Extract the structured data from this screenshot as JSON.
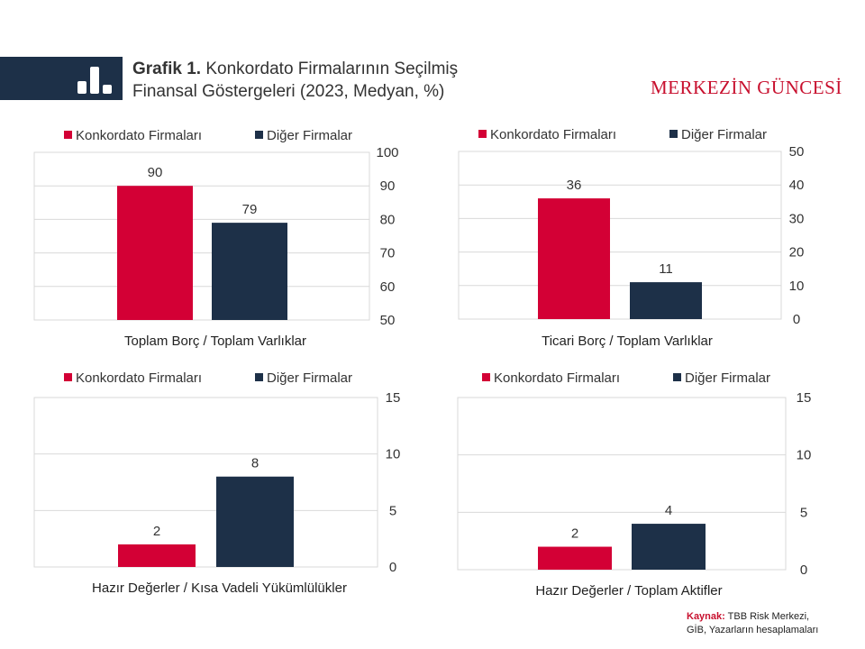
{
  "header": {
    "title_bold": "Grafik 1.",
    "title_line1": "Konkordato Firmalarının Seçilmiş",
    "title_line2": "Finansal Göstergeleri (2023, Medyan, %)",
    "brand": "MERKEZİN GÜNCESİ"
  },
  "colors": {
    "konkordato": "#d30035",
    "diger": "#1d3048",
    "grid": "#d9d9d9"
  },
  "legend": [
    "Konkordato Firmaları",
    "Diğer Firmalar"
  ],
  "chart_data": [
    {
      "type": "bar",
      "categories": [
        "Toplam Borç / Toplam Varlıklar"
      ],
      "series": [
        {
          "name": "Konkordato Firmaları",
          "values": [
            90
          ]
        },
        {
          "name": "Diğer Firmalar",
          "values": [
            79
          ]
        }
      ],
      "xlabel": "Toplam Borç / Toplam Varlıklar",
      "ylim": [
        50,
        100
      ],
      "yticks": [
        50,
        60,
        70,
        80,
        90,
        100
      ],
      "yaxis_position": "right"
    },
    {
      "type": "bar",
      "categories": [
        "Ticari Borç / Toplam Varlıklar"
      ],
      "series": [
        {
          "name": "Konkordato Firmaları",
          "values": [
            36
          ]
        },
        {
          "name": "Diğer Firmalar",
          "values": [
            11
          ]
        }
      ],
      "xlabel": "Ticari Borç / Toplam Varlıklar",
      "ylim": [
        0,
        50
      ],
      "yticks": [
        0,
        10,
        20,
        30,
        40,
        50
      ],
      "yaxis_position": "right"
    },
    {
      "type": "bar",
      "categories": [
        "Hazır Değerler / Kısa Vadeli Yükümlülükler"
      ],
      "series": [
        {
          "name": "Konkordato Firmaları",
          "values": [
            2
          ]
        },
        {
          "name": "Diğer Firmalar",
          "values": [
            8
          ]
        }
      ],
      "xlabel": "Hazır Değerler / Kısa Vadeli Yükümlülükler",
      "ylim": [
        0,
        15
      ],
      "yticks": [
        0,
        5,
        10,
        15
      ],
      "yaxis_position": "right"
    },
    {
      "type": "bar",
      "categories": [
        "Hazır Değerler / Toplam Aktifler"
      ],
      "series": [
        {
          "name": "Konkordato Firmaları",
          "values": [
            2
          ]
        },
        {
          "name": "Diğer Firmalar",
          "values": [
            4
          ]
        }
      ],
      "xlabel": "Hazır Değerler / Toplam Aktifler",
      "ylim": [
        0,
        15
      ],
      "yticks": [
        0,
        5,
        10,
        15
      ],
      "yaxis_position": "right"
    }
  ],
  "source": {
    "label": "Kaynak:",
    "line1": "TBB Risk Merkezi,",
    "line2": "GİB, Yazarların hesaplamaları"
  }
}
